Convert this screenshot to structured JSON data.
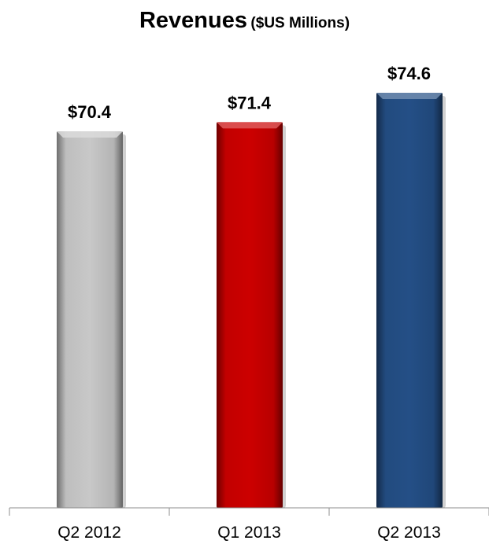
{
  "chart_data": {
    "type": "bar",
    "title": "Revenues",
    "subtitle": "($US Millions)",
    "categories": [
      "Q2 2012",
      "Q1 2013",
      "Q2 2013"
    ],
    "values": [
      70.4,
      71.4,
      74.6
    ],
    "data_labels": [
      "$70.4",
      "$71.4",
      "$74.6"
    ],
    "colors": [
      "#c8c8c8",
      "#cc0000",
      "#244f86"
    ],
    "xlabel": "",
    "ylabel": "",
    "grid": false,
    "legend": "none"
  }
}
